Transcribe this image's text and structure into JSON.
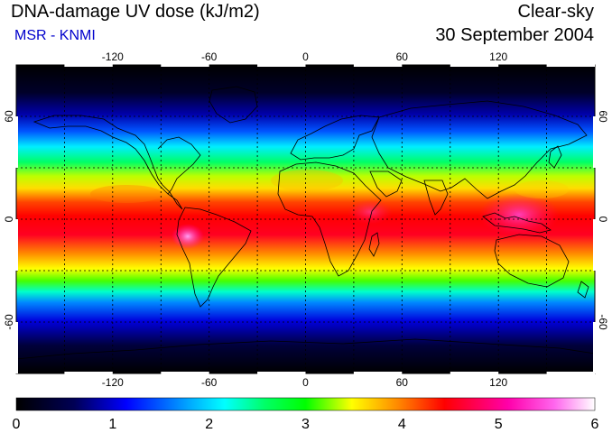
{
  "header": {
    "title": "DNA-damage UV dose (kJ/m2)",
    "subtitle": "MSR - KNMI",
    "sky_condition": "Clear-sky",
    "date": "30 September 2004"
  },
  "map": {
    "lon_ticks": [
      "-120",
      "-60",
      "0",
      "60",
      "120"
    ],
    "lat_ticks": [
      "60",
      "0",
      "-60"
    ],
    "lon_range": [
      -180,
      180
    ],
    "lat_range": [
      -90,
      90
    ],
    "gridlines": true,
    "gridline_style": "dotted",
    "coastlines": true
  },
  "colorbar": {
    "labels": [
      "0",
      "1",
      "2",
      "3",
      "4",
      "5",
      "6"
    ],
    "range": [
      0,
      6
    ],
    "colors": [
      "#000000",
      "#000080",
      "#0000ff",
      "#00ffff",
      "#00ff00",
      "#ffff00",
      "#ff8000",
      "#ff0000",
      "#ff00a0",
      "#ffffff"
    ]
  }
}
